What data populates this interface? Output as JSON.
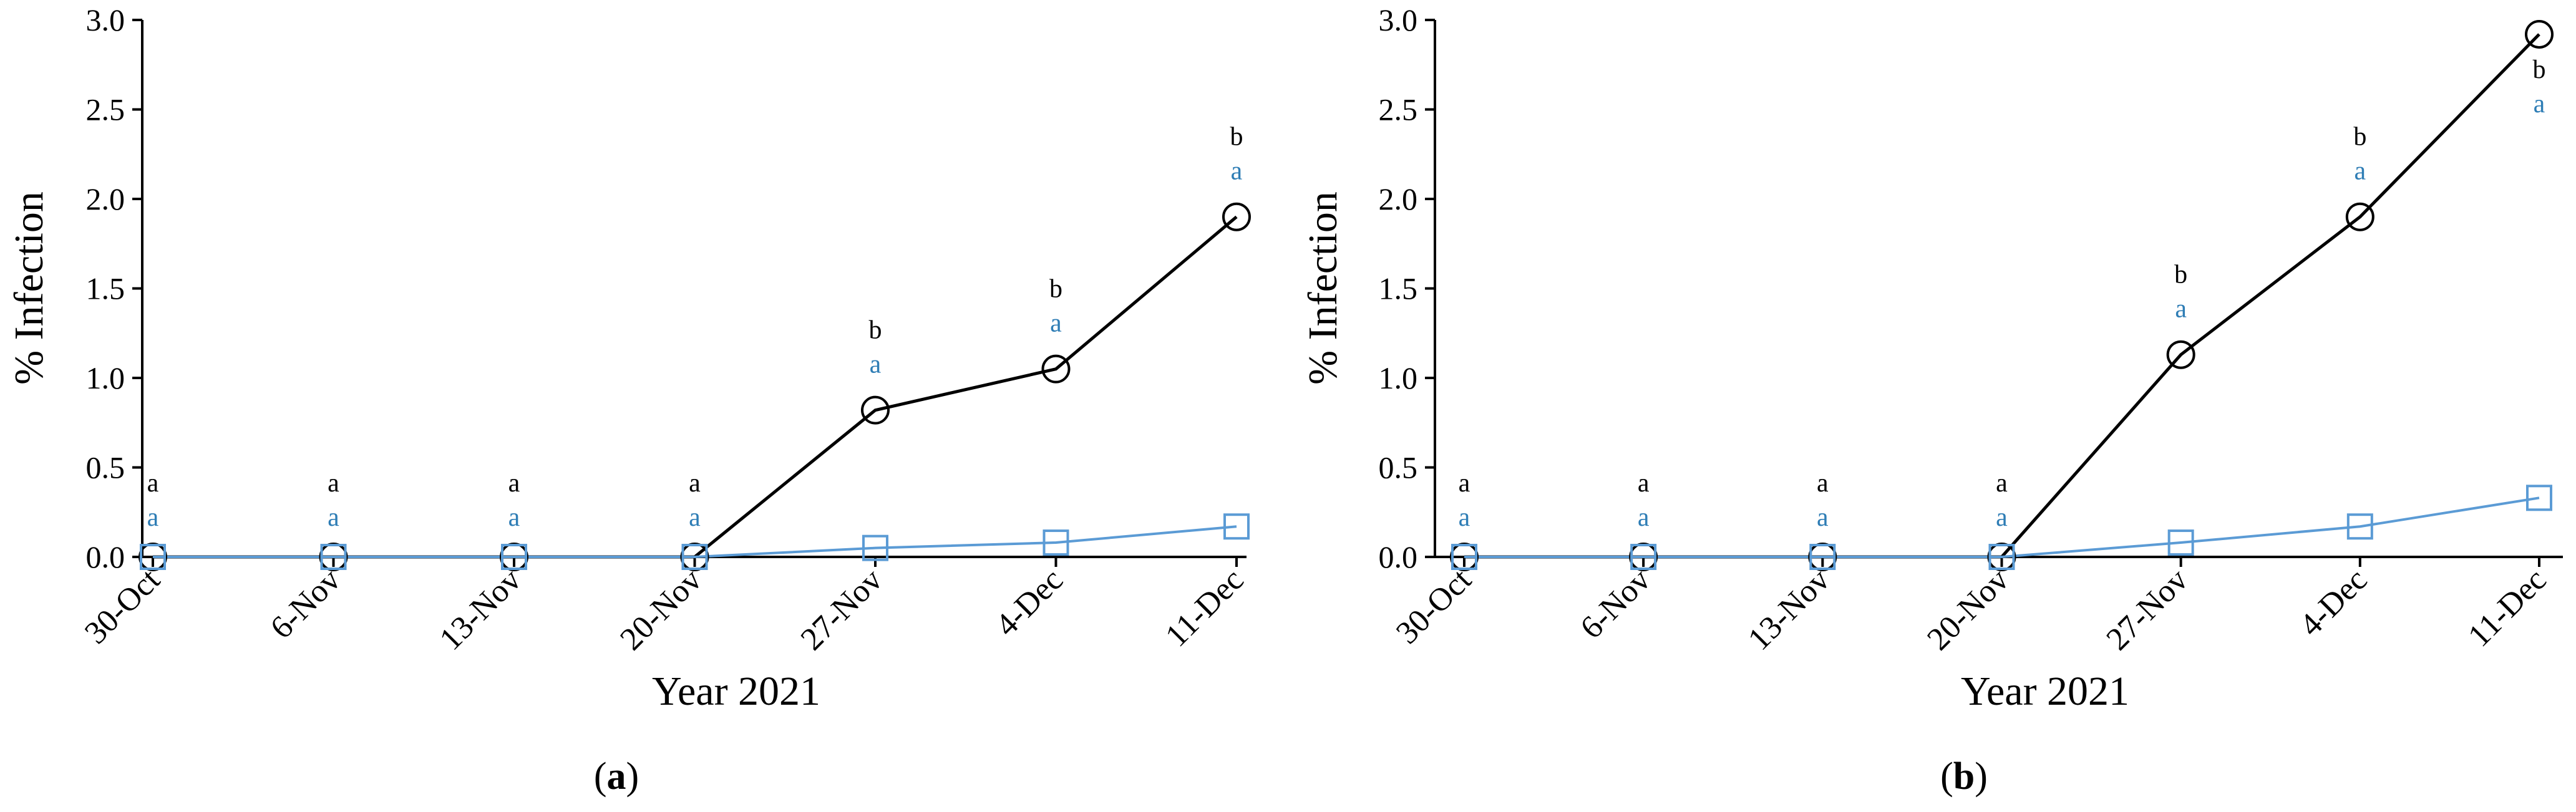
{
  "panels": [
    {
      "label_open": "(",
      "label_letter": "a",
      "label_close": ")"
    },
    {
      "label_open": "(",
      "label_letter": "b",
      "label_close": ")"
    }
  ],
  "colors": {
    "series_black": "#000000",
    "series_blue": "#5b9bd5",
    "letter_blue": "#2e7db5"
  },
  "chart_data": [
    {
      "type": "line",
      "title": "",
      "xlabel": "Year 2021",
      "ylabel": "% Infection",
      "categories": [
        "30-Oct",
        "6-Nov",
        "13-Nov",
        "20-Nov",
        "27-Nov",
        "4-Dec",
        "11-Dec"
      ],
      "ylim": [
        0,
        3.0
      ],
      "yticks": [
        "0.0",
        "0.5",
        "1.0",
        "1.5",
        "2.0",
        "2.5",
        "3.0"
      ],
      "grid": false,
      "series": [
        {
          "marker": "circle",
          "color": "#000000",
          "values": [
            0,
            0,
            0,
            0,
            0.82,
            1.05,
            1.9
          ]
        },
        {
          "marker": "square",
          "color": "#5b9bd5",
          "values": [
            0,
            0,
            0,
            0,
            0.05,
            0.08,
            0.17
          ]
        }
      ],
      "letters_top": [
        "a",
        "a",
        "a",
        "a",
        "b",
        "b",
        "b"
      ],
      "letters_bottom": [
        "a",
        "a",
        "a",
        "a",
        "a",
        "a",
        "a"
      ]
    },
    {
      "type": "line",
      "title": "",
      "xlabel": "Year 2021",
      "ylabel": "% Infection",
      "categories": [
        "30-Oct",
        "6-Nov",
        "13-Nov",
        "20-Nov",
        "27-Nov",
        "4-Dec",
        "11-Dec"
      ],
      "ylim": [
        0,
        3.0
      ],
      "yticks": [
        "0.0",
        "0.5",
        "1.0",
        "1.5",
        "2.0",
        "2.5",
        "3.0"
      ],
      "grid": false,
      "series": [
        {
          "marker": "circle",
          "color": "#000000",
          "values": [
            0,
            0,
            0,
            0,
            1.13,
            1.9,
            2.92
          ]
        },
        {
          "marker": "square",
          "color": "#5b9bd5",
          "values": [
            0,
            0,
            0,
            0,
            0.08,
            0.17,
            0.33
          ]
        }
      ],
      "letters_top": [
        "a",
        "a",
        "a",
        "a",
        "b",
        "b",
        "b"
      ],
      "letters_bottom": [
        "a",
        "a",
        "a",
        "a",
        "a",
        "a",
        "a"
      ]
    }
  ]
}
